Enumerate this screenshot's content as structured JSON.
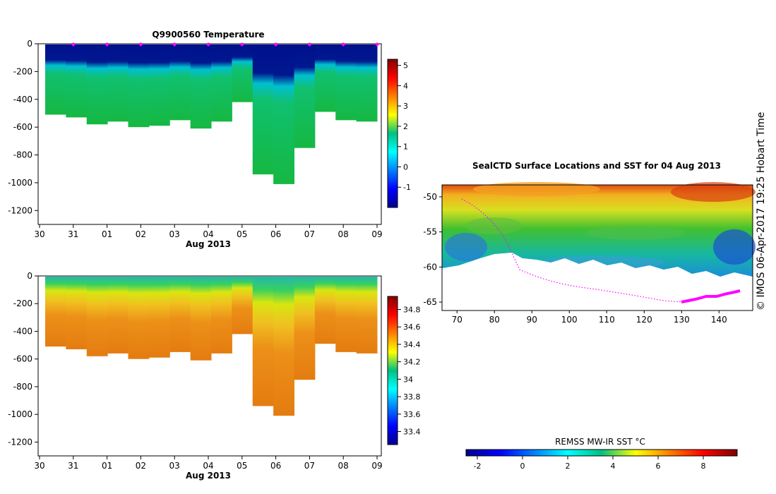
{
  "stamp": "© IMOS 06-Apr-2017 19:25 Hobart Time",
  "chart_data": [
    {
      "type": "heatmap",
      "title": "Q9900560  Temperature",
      "xlabel": "Aug 2013",
      "ylabel": "",
      "x_ticks": [
        "30",
        "31",
        "01",
        "02",
        "03",
        "04",
        "05",
        "06",
        "07",
        "08",
        "09"
      ],
      "y_ticks": [
        "0",
        "-200",
        "-400",
        "-600",
        "-800",
        "-1000",
        "-1200"
      ],
      "ylim": [
        -1300,
        0
      ],
      "colorbar": {
        "min": -2,
        "max": 5.3,
        "ticks": [
          "-1",
          "0",
          "1",
          "2",
          "3",
          "4",
          "5"
        ]
      },
      "profile_dates": [
        "31 Jul",
        "01 Aug",
        "02 Aug",
        "03 Aug",
        "04 Aug",
        "05 Aug",
        "06 Aug",
        "07 Aug",
        "08 Aug",
        "09 Aug"
      ],
      "profile_depths_m": [
        -510,
        -530,
        -580,
        -560,
        -600,
        -590,
        -550,
        -610,
        -560,
        -420,
        -940,
        -1010,
        -750,
        -490,
        -550,
        -560
      ],
      "surface_layer": {
        "temperature": -1.8,
        "approx_depth_m": -150
      },
      "deep_layer": {
        "temperature_range": [
          0.5,
          2.0
        ]
      }
    },
    {
      "type": "heatmap",
      "title": "",
      "xlabel": "Aug 2013",
      "ylabel": "",
      "x_ticks": [
        "30",
        "31",
        "01",
        "02",
        "03",
        "04",
        "05",
        "06",
        "07",
        "08",
        "09"
      ],
      "y_ticks": [
        "0",
        "-200",
        "-400",
        "-600",
        "-800",
        "-1000",
        "-1200"
      ],
      "ylim": [
        -1300,
        0
      ],
      "colorbar": {
        "min": 33.25,
        "max": 34.95,
        "ticks": [
          "33.4",
          "33.6",
          "33.8",
          "34",
          "34.2",
          "34.4",
          "34.6",
          "34.8"
        ]
      },
      "surface_layer": {
        "salinity": 34.0
      },
      "deep_layer": {
        "salinity_range": [
          34.55,
          34.7
        ]
      }
    },
    {
      "type": "heatmap",
      "title": "SealCTD Surface Locations and SST for 04 Aug 2013",
      "xlabel": "",
      "ylabel": "",
      "x_ticks": [
        "70",
        "80",
        "90",
        "100",
        "110",
        "120",
        "130",
        "140"
      ],
      "y_ticks": [
        "-50",
        "-55",
        "-60",
        "-65"
      ],
      "xlim": [
        66,
        149
      ],
      "ylim": [
        -66.2,
        -48.3
      ],
      "colorbar": {
        "title": "REMSS MW-IR SST °C",
        "min": -2.5,
        "max": 9.5,
        "ticks": [
          "-2",
          "0",
          "2",
          "4",
          "6",
          "8"
        ]
      },
      "track_color": "#ff00ff"
    }
  ]
}
